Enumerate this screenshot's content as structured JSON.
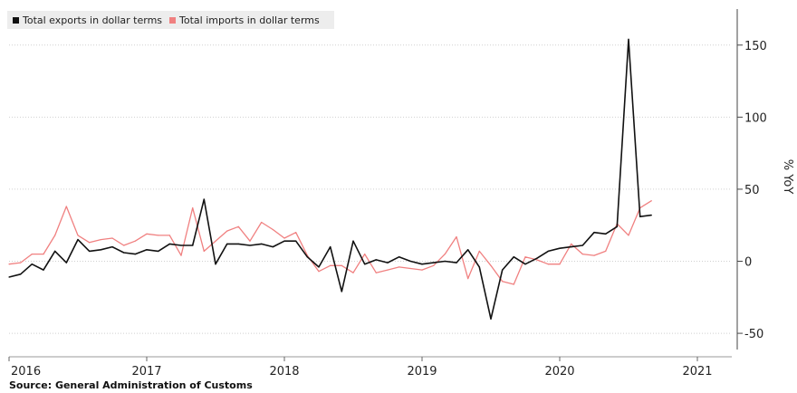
{
  "chart_data": {
    "type": "line",
    "ylabel": "% YoY",
    "ylim": [
      -60,
      175
    ],
    "yticks": [
      -50,
      0,
      50,
      100,
      150
    ],
    "xlim": [
      "2016-01",
      "2021-04"
    ],
    "xticks": [
      {
        "label": "2016",
        "x": "2016-01"
      },
      {
        "label": "2017",
        "x": "2017-01"
      },
      {
        "label": "2018",
        "x": "2018-01"
      },
      {
        "label": "2019",
        "x": "2019-01"
      },
      {
        "label": "2020",
        "x": "2020-01"
      },
      {
        "label": "2021",
        "x": "2021-01"
      }
    ],
    "grid": true,
    "legend_position": "top-left",
    "series": [
      {
        "name": "Total exports in dollar terms",
        "color": "#111111",
        "points": [
          [
            "2016-01",
            -11
          ],
          [
            "2016-02",
            -9
          ],
          [
            "2016-03",
            -2
          ],
          [
            "2016-04",
            -6
          ],
          [
            "2016-05",
            7
          ],
          [
            "2016-06",
            -1
          ],
          [
            "2016-07",
            15
          ],
          [
            "2016-08",
            7
          ],
          [
            "2016-09",
            8
          ],
          [
            "2016-10",
            10
          ],
          [
            "2016-11",
            6
          ],
          [
            "2016-12",
            5
          ],
          [
            "2017-01",
            8
          ],
          [
            "2017-02",
            7
          ],
          [
            "2017-03",
            12
          ],
          [
            "2017-04",
            11
          ],
          [
            "2017-05",
            11
          ],
          [
            "2017-06",
            43
          ],
          [
            "2017-07",
            -2
          ],
          [
            "2017-08",
            12
          ],
          [
            "2017-09",
            12
          ],
          [
            "2017-10",
            11
          ],
          [
            "2017-11",
            12
          ],
          [
            "2017-12",
            10
          ],
          [
            "2018-01",
            14
          ],
          [
            "2018-02",
            14
          ],
          [
            "2018-03",
            3
          ],
          [
            "2018-04",
            -4
          ],
          [
            "2018-05",
            10
          ],
          [
            "2018-06",
            -21
          ],
          [
            "2018-07",
            14
          ],
          [
            "2018-08",
            -2
          ],
          [
            "2018-09",
            1
          ],
          [
            "2018-10",
            -1
          ],
          [
            "2018-11",
            3
          ],
          [
            "2018-12",
            0
          ],
          [
            "2019-01",
            -2
          ],
          [
            "2019-02",
            -1
          ],
          [
            "2019-03",
            0
          ],
          [
            "2019-04",
            -1
          ],
          [
            "2019-05",
            8
          ],
          [
            "2019-06",
            -4
          ],
          [
            "2019-07",
            -40
          ],
          [
            "2019-08",
            -6
          ],
          [
            "2019-09",
            3
          ],
          [
            "2019-10",
            -2
          ],
          [
            "2019-11",
            2
          ],
          [
            "2019-12",
            7
          ],
          [
            "2020-01",
            9
          ],
          [
            "2020-02",
            10
          ],
          [
            "2020-03",
            11
          ],
          [
            "2020-04",
            20
          ],
          [
            "2020-05",
            19
          ],
          [
            "2020-06",
            24
          ],
          [
            "2020-07",
            154
          ],
          [
            "2020-08",
            31
          ],
          [
            "2020-09",
            32
          ]
        ]
      },
      {
        "name": "Total imports in dollar terms",
        "color": "#f08080",
        "points": [
          [
            "2016-01",
            -2
          ],
          [
            "2016-02",
            -1
          ],
          [
            "2016-03",
            5
          ],
          [
            "2016-04",
            5
          ],
          [
            "2016-05",
            18
          ],
          [
            "2016-06",
            38
          ],
          [
            "2016-07",
            18
          ],
          [
            "2016-08",
            13
          ],
          [
            "2016-09",
            15
          ],
          [
            "2016-10",
            16
          ],
          [
            "2016-11",
            11
          ],
          [
            "2016-12",
            14
          ],
          [
            "2017-01",
            19
          ],
          [
            "2017-02",
            18
          ],
          [
            "2017-03",
            18
          ],
          [
            "2017-04",
            4
          ],
          [
            "2017-05",
            37
          ],
          [
            "2017-06",
            7
          ],
          [
            "2017-07",
            14
          ],
          [
            "2017-08",
            21
          ],
          [
            "2017-09",
            24
          ],
          [
            "2017-10",
            14
          ],
          [
            "2017-11",
            27
          ],
          [
            "2017-12",
            22
          ],
          [
            "2018-01",
            16
          ],
          [
            "2018-02",
            20
          ],
          [
            "2018-03",
            4
          ],
          [
            "2018-04",
            -7
          ],
          [
            "2018-05",
            -3
          ],
          [
            "2018-06",
            -3
          ],
          [
            "2018-07",
            -8
          ],
          [
            "2018-08",
            5
          ],
          [
            "2018-09",
            -8
          ],
          [
            "2018-10",
            -6
          ],
          [
            "2018-11",
            -4
          ],
          [
            "2018-12",
            -5
          ],
          [
            "2019-01",
            -6
          ],
          [
            "2019-02",
            -3
          ],
          [
            "2019-03",
            5
          ],
          [
            "2019-04",
            17
          ],
          [
            "2019-05",
            -12
          ],
          [
            "2019-06",
            7
          ],
          [
            "2019-07",
            -3
          ],
          [
            "2019-08",
            -14
          ],
          [
            "2019-09",
            -16
          ],
          [
            "2019-10",
            3
          ],
          [
            "2019-11",
            1
          ],
          [
            "2019-12",
            -2
          ],
          [
            "2020-01",
            -2
          ],
          [
            "2020-02",
            12
          ],
          [
            "2020-03",
            5
          ],
          [
            "2020-04",
            4
          ],
          [
            "2020-05",
            7
          ],
          [
            "2020-06",
            26
          ],
          [
            "2020-07",
            18
          ],
          [
            "2020-08",
            37
          ],
          [
            "2020-09",
            42
          ]
        ]
      }
    ]
  },
  "source": "Source: General Administration of Customs"
}
